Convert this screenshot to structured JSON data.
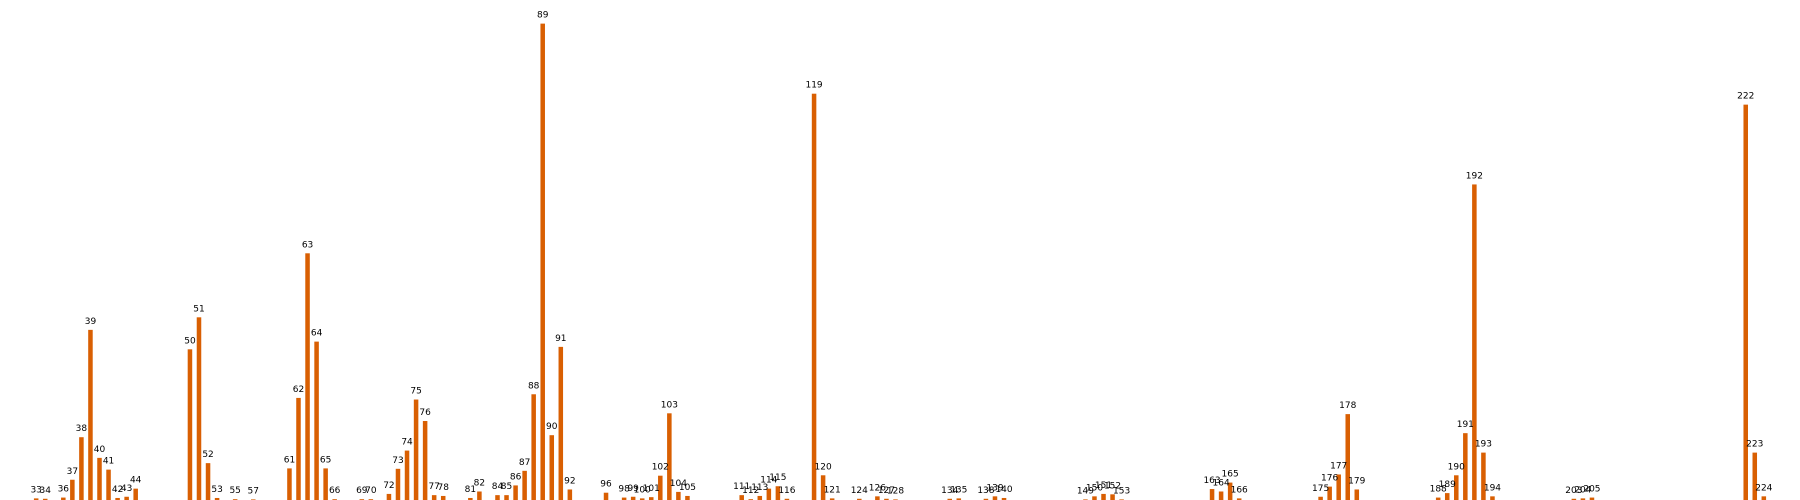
{
  "chart_data": {
    "type": "bar",
    "title": "",
    "xlabel": "",
    "ylabel": "",
    "grid": false,
    "legend": "none",
    "bar_color": "#d95f02",
    "xlim": [
      29,
      228
    ],
    "ylim": [
      0,
      118
    ],
    "points": [
      {
        "x": 33,
        "y": 0.4,
        "label": "33"
      },
      {
        "x": 34,
        "y": 0.3,
        "label": "34"
      },
      {
        "x": 36,
        "y": 0.6,
        "label": "36"
      },
      {
        "x": 37,
        "y": 5,
        "label": "37"
      },
      {
        "x": 38,
        "y": 15.5,
        "label": "38"
      },
      {
        "x": 39,
        "y": 42,
        "label": "39"
      },
      {
        "x": 40,
        "y": 10.4,
        "label": "40"
      },
      {
        "x": 41,
        "y": 7.5,
        "label": "41"
      },
      {
        "x": 42,
        "y": 0.5,
        "label": "42"
      },
      {
        "x": 43,
        "y": 0.8,
        "label": "43"
      },
      {
        "x": 44,
        "y": 2.8,
        "label": "44"
      },
      {
        "x": 50,
        "y": 37.2,
        "label": "50"
      },
      {
        "x": 51,
        "y": 45.1,
        "label": "51"
      },
      {
        "x": 52,
        "y": 9.1,
        "label": "52"
      },
      {
        "x": 53,
        "y": 0.5,
        "label": "53"
      },
      {
        "x": 55,
        "y": 0.2,
        "label": "55"
      },
      {
        "x": 57,
        "y": 0.1,
        "label": "57"
      },
      {
        "x": 61,
        "y": 7.8,
        "label": "61"
      },
      {
        "x": 62,
        "y": 25.2,
        "label": "62"
      },
      {
        "x": 63,
        "y": 60.9,
        "label": "63"
      },
      {
        "x": 64,
        "y": 39.1,
        "label": "64"
      },
      {
        "x": 65,
        "y": 7.8,
        "label": "65"
      },
      {
        "x": 66,
        "y": 0.2,
        "label": "66"
      },
      {
        "x": 69,
        "y": 0.2,
        "label": "69"
      },
      {
        "x": 70,
        "y": 0.2,
        "label": "70"
      },
      {
        "x": 72,
        "y": 1.5,
        "label": "72"
      },
      {
        "x": 73,
        "y": 7.7,
        "label": "73"
      },
      {
        "x": 74,
        "y": 12.2,
        "label": "74"
      },
      {
        "x": 75,
        "y": 24.8,
        "label": "75"
      },
      {
        "x": 76,
        "y": 19.5,
        "label": "76"
      },
      {
        "x": 77,
        "y": 1.2,
        "label": "77"
      },
      {
        "x": 78,
        "y": 1,
        "label": "78"
      },
      {
        "x": 81,
        "y": 0.5,
        "label": "81"
      },
      {
        "x": 82,
        "y": 2.1,
        "label": "82"
      },
      {
        "x": 84,
        "y": 1.2,
        "label": "84"
      },
      {
        "x": 85,
        "y": 1.2,
        "label": "85"
      },
      {
        "x": 86,
        "y": 3.6,
        "label": "86"
      },
      {
        "x": 87,
        "y": 7.2,
        "label": "87"
      },
      {
        "x": 88,
        "y": 26.1,
        "label": "88"
      },
      {
        "x": 89,
        "y": 117.6,
        "label": "89"
      },
      {
        "x": 90,
        "y": 16,
        "label": "90"
      },
      {
        "x": 91,
        "y": 37.8,
        "label": "91"
      },
      {
        "x": 92,
        "y": 2.6,
        "label": "92"
      },
      {
        "x": 96,
        "y": 1.8,
        "label": "96"
      },
      {
        "x": 98,
        "y": 0.6,
        "label": "98"
      },
      {
        "x": 99,
        "y": 0.8,
        "label": "99"
      },
      {
        "x": 100,
        "y": 0.4,
        "label": "100"
      },
      {
        "x": 101,
        "y": 0.7,
        "label": "101"
      },
      {
        "x": 102,
        "y": 6,
        "label": "102"
      },
      {
        "x": 103,
        "y": 21.4,
        "label": "103"
      },
      {
        "x": 104,
        "y": 2,
        "label": "104"
      },
      {
        "x": 105,
        "y": 1,
        "label": "105"
      },
      {
        "x": 111,
        "y": 1.2,
        "label": "111"
      },
      {
        "x": 112,
        "y": 0.2,
        "label": "112"
      },
      {
        "x": 113,
        "y": 1,
        "label": "113"
      },
      {
        "x": 114,
        "y": 2.8,
        "label": "114"
      },
      {
        "x": 115,
        "y": 3.4,
        "label": "115"
      },
      {
        "x": 116,
        "y": 0.3,
        "label": "116"
      },
      {
        "x": 119,
        "y": 100.3,
        "label": "119"
      },
      {
        "x": 120,
        "y": 6.1,
        "label": "120"
      },
      {
        "x": 121,
        "y": 0.4,
        "label": "121"
      },
      {
        "x": 124,
        "y": 0.3,
        "label": "124"
      },
      {
        "x": 126,
        "y": 0.9,
        "label": "126"
      },
      {
        "x": 127,
        "y": 0.3,
        "label": "127"
      },
      {
        "x": 128,
        "y": 0.1,
        "label": "128"
      },
      {
        "x": 134,
        "y": 0.3,
        "label": "134"
      },
      {
        "x": 135,
        "y": 0.4,
        "label": "135"
      },
      {
        "x": 138,
        "y": 0.3,
        "label": "138"
      },
      {
        "x": 139,
        "y": 0.9,
        "label": "139"
      },
      {
        "x": 140,
        "y": 0.5,
        "label": "140"
      },
      {
        "x": 149,
        "y": 0.1,
        "label": "149"
      },
      {
        "x": 150,
        "y": 0.9,
        "label": "150"
      },
      {
        "x": 151,
        "y": 1.5,
        "label": "151"
      },
      {
        "x": 152,
        "y": 1.4,
        "label": "152"
      },
      {
        "x": 153,
        "y": 0.1,
        "label": "153"
      },
      {
        "x": 163,
        "y": 2.7,
        "label": "163"
      },
      {
        "x": 164,
        "y": 2.1,
        "label": "164"
      },
      {
        "x": 165,
        "y": 4.3,
        "label": "165"
      },
      {
        "x": 166,
        "y": 0.4,
        "label": "166"
      },
      {
        "x": 175,
        "y": 0.8,
        "label": "175"
      },
      {
        "x": 176,
        "y": 3.3,
        "label": "176"
      },
      {
        "x": 177,
        "y": 6.3,
        "label": "177"
      },
      {
        "x": 178,
        "y": 21.2,
        "label": "178"
      },
      {
        "x": 179,
        "y": 2.6,
        "label": "179"
      },
      {
        "x": 188,
        "y": 0.6,
        "label": "188"
      },
      {
        "x": 189,
        "y": 1.7,
        "label": "189"
      },
      {
        "x": 190,
        "y": 6.1,
        "label": "190"
      },
      {
        "x": 191,
        "y": 16.5,
        "label": "191"
      },
      {
        "x": 192,
        "y": 77.9,
        "label": "192"
      },
      {
        "x": 193,
        "y": 11.7,
        "label": "193"
      },
      {
        "x": 194,
        "y": 0.9,
        "label": "194"
      },
      {
        "x": 203,
        "y": 0.3,
        "label": "203"
      },
      {
        "x": 204,
        "y": 0.4,
        "label": "204"
      },
      {
        "x": 205,
        "y": 0.6,
        "label": "205"
      },
      {
        "x": 222,
        "y": 97.6,
        "label": "222"
      },
      {
        "x": 223,
        "y": 11.7,
        "label": "223"
      },
      {
        "x": 224,
        "y": 0.9,
        "label": "224"
      }
    ]
  }
}
